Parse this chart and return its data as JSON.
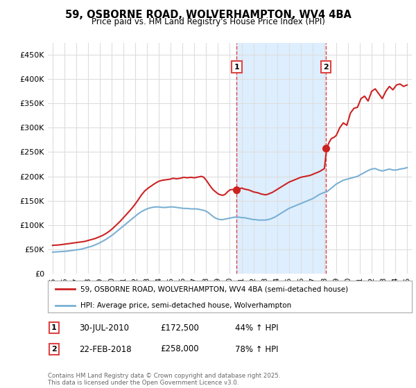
{
  "title_line1": "59, OSBORNE ROAD, WOLVERHAMPTON, WV4 4BA",
  "title_line2": "Price paid vs. HM Land Registry's House Price Index (HPI)",
  "legend_line1": "59, OSBORNE ROAD, WOLVERHAMPTON, WV4 4BA (semi-detached house)",
  "legend_line2": "HPI: Average price, semi-detached house, Wolverhampton",
  "annotation1": {
    "num": "1",
    "date": "30-JUL-2010",
    "price": "£172,500",
    "pct": "44% ↑ HPI"
  },
  "annotation2": {
    "num": "2",
    "date": "22-FEB-2018",
    "price": "£258,000",
    "pct": "78% ↑ HPI"
  },
  "footer": "Contains HM Land Registry data © Crown copyright and database right 2025.\nThis data is licensed under the Open Government Licence v3.0.",
  "red_color": "#cc2222",
  "blue_color": "#7ab0d4",
  "vline_color": "#dd4444",
  "shade_color": "#ddeeff",
  "plot_bg": "#ffffff",
  "grid_color": "#dddddd",
  "vline1_x": 2010.58,
  "vline2_x": 2018.13,
  "sale1_y": 172500,
  "sale2_y": 258000,
  "ylim_min": 0,
  "ylim_max": 475000,
  "xlim_min": 1994.6,
  "xlim_max": 2025.4,
  "yticks": [
    0,
    50000,
    100000,
    150000,
    200000,
    250000,
    300000,
    350000,
    400000,
    450000
  ],
  "ytick_labels": [
    "£0",
    "£50K",
    "£100K",
    "£150K",
    "£200K",
    "£250K",
    "£300K",
    "£350K",
    "£400K",
    "£450K"
  ],
  "xtick_years": [
    1995,
    1996,
    1997,
    1998,
    1999,
    2000,
    2001,
    2002,
    2003,
    2004,
    2005,
    2006,
    2007,
    2008,
    2009,
    2010,
    2011,
    2012,
    2013,
    2014,
    2015,
    2016,
    2017,
    2018,
    2019,
    2020,
    2021,
    2022,
    2023,
    2024,
    2025
  ],
  "red_x": [
    1995.0,
    1995.3,
    1995.6,
    1995.9,
    1996.2,
    1996.5,
    1996.8,
    1997.1,
    1997.4,
    1997.7,
    1998.0,
    1998.3,
    1998.6,
    1998.9,
    1999.2,
    1999.5,
    1999.8,
    2000.1,
    2000.4,
    2000.7,
    2001.0,
    2001.3,
    2001.6,
    2001.9,
    2002.2,
    2002.5,
    2002.8,
    2003.1,
    2003.4,
    2003.7,
    2004.0,
    2004.3,
    2004.6,
    2004.9,
    2005.2,
    2005.5,
    2005.8,
    2006.1,
    2006.4,
    2006.7,
    2007.0,
    2007.2,
    2007.4,
    2007.6,
    2007.8,
    2008.0,
    2008.2,
    2008.4,
    2008.6,
    2008.8,
    2009.0,
    2009.2,
    2009.4,
    2009.6,
    2009.8,
    2010.0,
    2010.2,
    2010.4,
    2010.6,
    2010.8,
    2011.0,
    2011.2,
    2011.4,
    2011.6,
    2011.8,
    2012.0,
    2012.2,
    2012.4,
    2012.6,
    2012.8,
    2013.0,
    2013.2,
    2013.4,
    2013.6,
    2013.8,
    2014.0,
    2014.2,
    2014.4,
    2014.6,
    2014.8,
    2015.0,
    2015.2,
    2015.4,
    2015.6,
    2015.8,
    2016.0,
    2016.2,
    2016.4,
    2016.6,
    2016.8,
    2017.0,
    2017.2,
    2017.4,
    2017.6,
    2017.8,
    2018.0,
    2018.2,
    2018.4,
    2018.6,
    2018.8,
    2019.0,
    2019.3,
    2019.6,
    2019.9,
    2020.2,
    2020.5,
    2020.8,
    2021.1,
    2021.4,
    2021.7,
    2022.0,
    2022.3,
    2022.6,
    2022.9,
    2023.2,
    2023.5,
    2023.8,
    2024.1,
    2024.4,
    2024.7,
    2025.0
  ],
  "red_y": [
    58000,
    58500,
    59000,
    60000,
    61000,
    62000,
    63000,
    64000,
    65000,
    66000,
    68000,
    70000,
    72000,
    75000,
    78000,
    82000,
    87000,
    93000,
    100000,
    107000,
    115000,
    123000,
    131000,
    140000,
    150000,
    161000,
    170000,
    176000,
    181000,
    186000,
    190000,
    192000,
    193000,
    194000,
    196000,
    195000,
    196000,
    198000,
    197000,
    198000,
    197000,
    198000,
    199000,
    200000,
    198000,
    192000,
    185000,
    178000,
    172000,
    168000,
    164000,
    162000,
    161000,
    163000,
    168000,
    172000,
    173000,
    172500,
    173000,
    174000,
    176000,
    174000,
    173000,
    172000,
    170000,
    168000,
    167000,
    166000,
    164000,
    163000,
    162000,
    163000,
    165000,
    167000,
    170000,
    173000,
    176000,
    179000,
    182000,
    185000,
    188000,
    190000,
    192000,
    194000,
    196000,
    198000,
    199000,
    200000,
    201000,
    202000,
    204000,
    206000,
    208000,
    210000,
    213000,
    216000,
    258000,
    270000,
    278000,
    280000,
    284000,
    300000,
    310000,
    305000,
    330000,
    340000,
    342000,
    360000,
    365000,
    355000,
    375000,
    380000,
    370000,
    360000,
    375000,
    385000,
    378000,
    388000,
    390000,
    385000,
    388000
  ],
  "blue_x": [
    1995.0,
    1995.3,
    1995.6,
    1995.9,
    1996.2,
    1996.5,
    1996.8,
    1997.1,
    1997.4,
    1997.7,
    1998.0,
    1998.3,
    1998.6,
    1998.9,
    1999.2,
    1999.5,
    1999.8,
    2000.1,
    2000.4,
    2000.7,
    2001.0,
    2001.3,
    2001.6,
    2001.9,
    2002.2,
    2002.5,
    2002.8,
    2003.1,
    2003.4,
    2003.7,
    2004.0,
    2004.3,
    2004.6,
    2004.9,
    2005.2,
    2005.5,
    2005.8,
    2006.1,
    2006.4,
    2006.7,
    2007.0,
    2007.2,
    2007.4,
    2007.6,
    2007.8,
    2008.0,
    2008.2,
    2008.4,
    2008.6,
    2008.8,
    2009.0,
    2009.2,
    2009.4,
    2009.6,
    2009.8,
    2010.0,
    2010.2,
    2010.4,
    2010.6,
    2010.8,
    2011.0,
    2011.2,
    2011.4,
    2011.6,
    2011.8,
    2012.0,
    2012.2,
    2012.4,
    2012.6,
    2012.8,
    2013.0,
    2013.2,
    2013.4,
    2013.6,
    2013.8,
    2014.0,
    2014.2,
    2014.4,
    2014.6,
    2014.8,
    2015.0,
    2015.2,
    2015.4,
    2015.6,
    2015.8,
    2016.0,
    2016.2,
    2016.4,
    2016.6,
    2016.8,
    2017.0,
    2017.2,
    2017.4,
    2017.6,
    2017.8,
    2018.0,
    2018.2,
    2018.4,
    2018.6,
    2018.8,
    2019.0,
    2019.3,
    2019.6,
    2019.9,
    2020.2,
    2020.5,
    2020.8,
    2021.1,
    2021.4,
    2021.7,
    2022.0,
    2022.3,
    2022.6,
    2022.9,
    2023.2,
    2023.5,
    2023.8,
    2024.1,
    2024.4,
    2024.7,
    2025.0
  ],
  "blue_y": [
    44000,
    44500,
    45000,
    45500,
    46000,
    47000,
    48000,
    49000,
    50000,
    52000,
    54000,
    56000,
    59000,
    62000,
    66000,
    70000,
    75000,
    80000,
    86000,
    92000,
    98000,
    104000,
    110000,
    116000,
    122000,
    127000,
    131000,
    134000,
    136000,
    137000,
    137000,
    136000,
    136000,
    137000,
    137000,
    136000,
    135000,
    134000,
    134000,
    133000,
    133000,
    133000,
    132000,
    131000,
    130000,
    128000,
    125000,
    121000,
    117000,
    114000,
    112000,
    111000,
    111000,
    112000,
    113000,
    114000,
    115000,
    116000,
    116000,
    116000,
    115000,
    115000,
    114000,
    113000,
    112000,
    111000,
    111000,
    110000,
    110000,
    110000,
    110000,
    111000,
    112000,
    114000,
    116000,
    119000,
    122000,
    125000,
    128000,
    131000,
    134000,
    136000,
    138000,
    140000,
    142000,
    144000,
    146000,
    148000,
    150000,
    152000,
    154000,
    157000,
    160000,
    163000,
    165000,
    167000,
    168000,
    172000,
    176000,
    180000,
    184000,
    188000,
    192000,
    194000,
    196000,
    198000,
    200000,
    204000,
    208000,
    212000,
    215000,
    216000,
    213000,
    211000,
    213000,
    215000,
    213000,
    213000,
    215000,
    216000,
    218000
  ]
}
